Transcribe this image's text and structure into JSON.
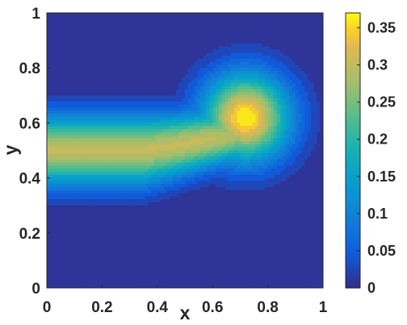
{
  "chart_data": {
    "type": "heatmap",
    "style": "filled-contour",
    "colormap": "parula",
    "title": "",
    "xlabel": "x",
    "ylabel": "y",
    "xlim": [
      0,
      1
    ],
    "ylim": [
      0,
      1
    ],
    "x_ticks": [
      "0",
      "0.2",
      "0.4",
      "0.6",
      "0.8",
      "1"
    ],
    "y_ticks": [
      "0",
      "0.2",
      "0.4",
      "0.6",
      "0.8",
      "1"
    ],
    "colorbar": {
      "range": [
        0,
        0.37
      ],
      "ticks": [
        "0",
        "0.05",
        "0.1",
        "0.15",
        "0.2",
        "0.25",
        "0.3",
        "0.35"
      ]
    },
    "features": [
      {
        "description": "plume band",
        "x_range": [
          0,
          0.6
        ],
        "center_y": [
          0.5,
          0.55
        ],
        "peak_value": 0.3
      },
      {
        "description": "hot spot",
        "x": 0.72,
        "y": 0.62,
        "peak_value": 0.37
      }
    ],
    "grid": false,
    "legend": "none"
  }
}
